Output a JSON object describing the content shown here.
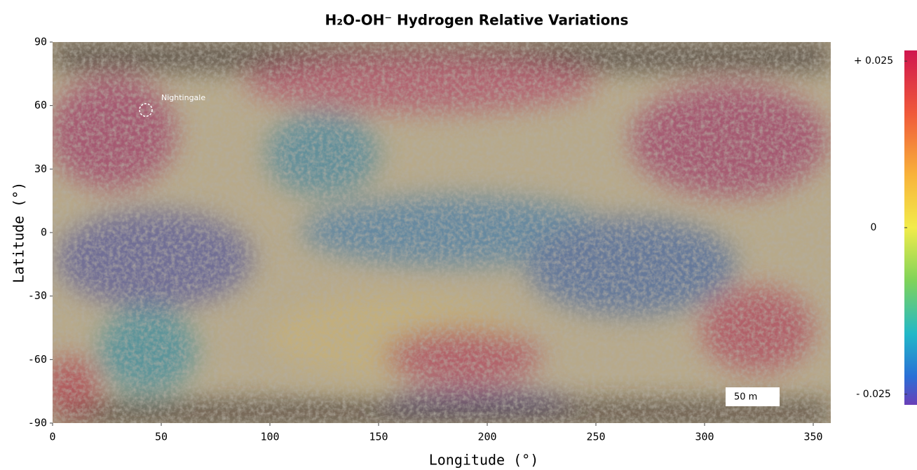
{
  "title": "H₂O-OH⁻ Hydrogen Relative Variations",
  "x_label": "Longitude (°)",
  "y_label": "Latitude (°)",
  "xlim": [
    0,
    360
  ],
  "ylim": [
    -90,
    90
  ],
  "xticks": [
    0,
    50,
    100,
    150,
    200,
    250,
    300,
    350
  ],
  "yticks": [
    90,
    60,
    30,
    0,
    -30,
    -60,
    -90
  ],
  "annotation": "Nightingale",
  "scale_bar": "50 m",
  "colorbar": {
    "clim": [
      -0.0266,
      0.0266
    ],
    "ticks": [
      {
        "value": 0.025,
        "label": "+ 0.025"
      },
      0,
      {
        "value": -0.025,
        "label": "- 0.025"
      }
    ]
  }
}
